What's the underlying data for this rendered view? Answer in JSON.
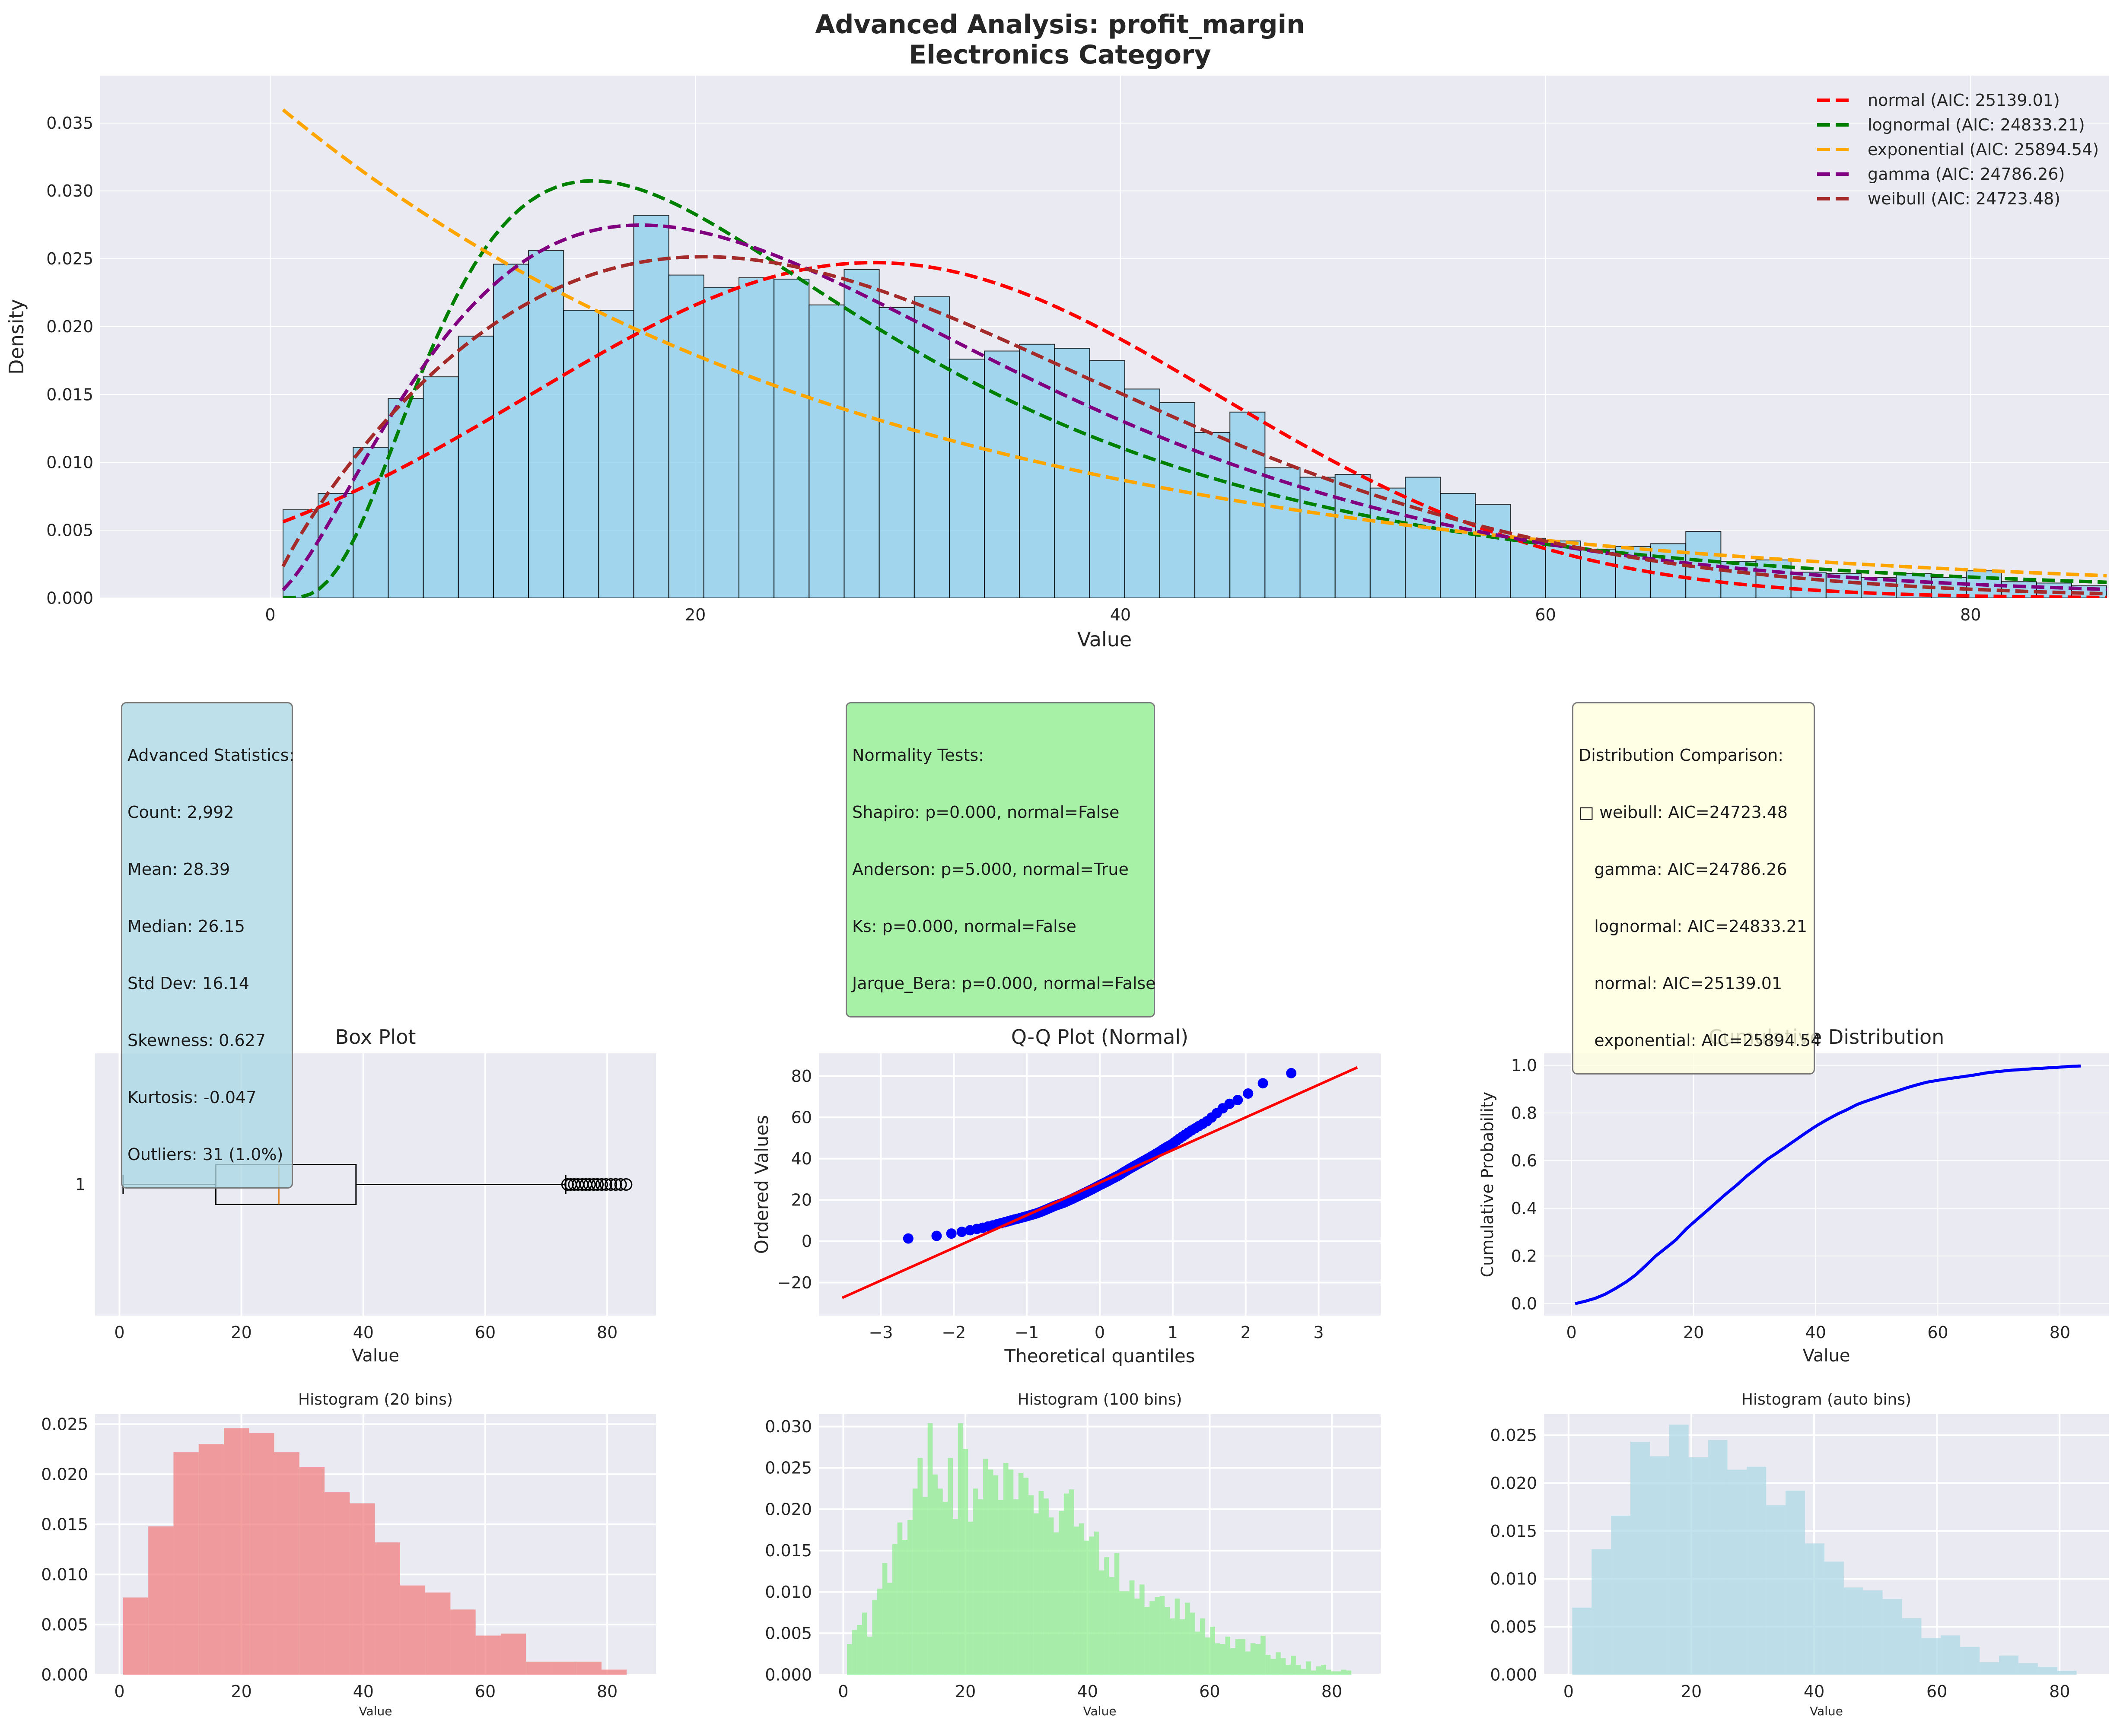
{
  "colors": {
    "axes_bg": "#eaeaf2",
    "hist_main": "#87ceeb",
    "normal": "#ff0000",
    "lognormal": "#008000",
    "exponential": "#ffa500",
    "gamma": "#800080",
    "weibull": "#a52a2a",
    "box_median": "#e08a2b",
    "qq_points": "#0000ff",
    "qq_line": "#ff0000",
    "cdf_line": "#0000ff",
    "hist20": "#f08080",
    "hist100": "#90ee90",
    "histauto": "#add8e6",
    "stats_box": "#add8e6",
    "tests_box": "#90ee90",
    "comparison_box": "#ffffe0"
  },
  "title": {
    "line1": "Advanced Analysis: profit_margin",
    "line2": "Electronics Category"
  },
  "chart_data": [
    {
      "id": "main",
      "type": "bar",
      "xlabel": "Value",
      "ylabel": "Density",
      "xlim": [
        -8,
        86.5
      ],
      "ylim": [
        0,
        0.0385
      ],
      "xticks": [
        0,
        20,
        40,
        60,
        80
      ],
      "yticks": [
        0,
        0.005,
        0.01,
        0.015,
        0.02,
        0.025,
        0.03,
        0.035
      ],
      "bin_start": 0.6,
      "bin_width": 1.65,
      "densities": [
        0.0065,
        0.0077,
        0.0111,
        0.0147,
        0.0163,
        0.0193,
        0.0246,
        0.0256,
        0.0212,
        0.0212,
        0.0282,
        0.0238,
        0.0229,
        0.0236,
        0.0235,
        0.0216,
        0.0242,
        0.0214,
        0.0222,
        0.0176,
        0.0182,
        0.0187,
        0.0184,
        0.0175,
        0.0154,
        0.0144,
        0.0122,
        0.0137,
        0.0096,
        0.0089,
        0.0091,
        0.0081,
        0.0089,
        0.0077,
        0.0069,
        0.0044,
        0.0042,
        0.0036,
        0.0038,
        0.004,
        0.0049,
        0.0027,
        0.0028,
        0.0019,
        0.0018,
        0.0015,
        0.0018,
        0.0015,
        0.002,
        0.0012,
        0.0011,
        0.0009
      ],
      "legend": {
        "position": "upper right",
        "entries": [
          {
            "label": "normal (AIC: 25139.01)",
            "key": "normal"
          },
          {
            "label": "lognormal (AIC: 24833.21)",
            "key": "lognormal"
          },
          {
            "label": "exponential (AIC: 25894.54)",
            "key": "exponential"
          },
          {
            "label": "gamma (AIC: 24786.26)",
            "key": "gamma"
          },
          {
            "label": "weibull (AIC: 24723.48)",
            "key": "weibull"
          }
        ]
      },
      "fits": {
        "normal": {
          "mean": 28.39,
          "sd": 16.14
        },
        "lognormal": {
          "mu": 3.18,
          "sigma": 0.68
        },
        "exponential": {
          "loc": 0.6,
          "scale": 27.79
        },
        "gamma": {
          "shape": 2.6,
          "scale": 10.9
        },
        "weibull": {
          "shape": 1.8,
          "scale": 32.0
        }
      }
    },
    {
      "id": "box",
      "type": "box",
      "title": "Box Plot",
      "xlabel": "Value",
      "ytick_label": "1",
      "xlim": [
        -4,
        88
      ],
      "xticks": [
        0,
        20,
        40,
        60,
        80
      ],
      "whisker_low": 0.6,
      "q1": 15.8,
      "median": 26.15,
      "q3": 38.8,
      "whisker_high": 73.2,
      "outliers": [
        73.5,
        74.0,
        74.6,
        75.2,
        75.9,
        76.5,
        77.1,
        77.8,
        78.4,
        79.1,
        79.8,
        80.6,
        81.4,
        82.2,
        83.1
      ]
    },
    {
      "id": "qq",
      "type": "scatter",
      "title": "Q-Q Plot (Normal)",
      "xlabel": "Theoretical quantiles",
      "ylabel": "Ordered Values",
      "xlim": [
        -3.85,
        3.85
      ],
      "ylim": [
        -36,
        91
      ],
      "xticks": [
        -3,
        -2,
        -1,
        0,
        1,
        2,
        3
      ],
      "yticks": [
        -20,
        0,
        20,
        40,
        60,
        80
      ],
      "fit_line": {
        "slope": 15.8,
        "intercept": 28.39,
        "x_from": -3.53,
        "x_to": 3.53
      }
    },
    {
      "id": "cdf",
      "type": "line",
      "title": "Cumulative Distribution",
      "xlabel": "Value",
      "ylabel": "Cumulative Probability",
      "xlim": [
        -4.5,
        88
      ],
      "ylim": [
        -0.05,
        1.05
      ],
      "xticks": [
        0,
        20,
        40,
        60,
        80
      ],
      "yticks": [
        0,
        0.2,
        0.4,
        0.6,
        0.8,
        1.0
      ]
    },
    {
      "id": "h20",
      "type": "bar",
      "title": "Histogram (20 bins)",
      "xlabel": "Value",
      "xlim": [
        -4,
        88
      ],
      "ylim": [
        0,
        0.026
      ],
      "xticks": [
        0,
        20,
        40,
        60,
        80
      ],
      "yticks": [
        0,
        0.005,
        0.01,
        0.015,
        0.02,
        0.025
      ],
      "bin_start": 0.6,
      "bin_width": 4.13,
      "densities": [
        0.0077,
        0.0148,
        0.0222,
        0.023,
        0.0246,
        0.0241,
        0.0222,
        0.0207,
        0.0182,
        0.0171,
        0.0132,
        0.0089,
        0.0082,
        0.0065,
        0.0039,
        0.0041,
        0.0013,
        0.0013,
        0.0013,
        0.0005
      ]
    },
    {
      "id": "h100",
      "type": "bar",
      "title": "Histogram (100 bins)",
      "xlabel": "Value",
      "xlim": [
        -4,
        88
      ],
      "ylim": [
        0,
        0.0315
      ],
      "xticks": [
        0,
        20,
        40,
        60,
        80
      ],
      "yticks": [
        0,
        0.005,
        0.01,
        0.015,
        0.02,
        0.025,
        0.03
      ],
      "bin_start": 0.6,
      "bin_width": 0.826,
      "densities": [
        0.0037,
        0.0054,
        0.006,
        0.0075,
        0.0046,
        0.009,
        0.0104,
        0.0135,
        0.0111,
        0.0158,
        0.0184,
        0.0163,
        0.0187,
        0.0225,
        0.0262,
        0.0215,
        0.0304,
        0.0242,
        0.0225,
        0.0209,
        0.0262,
        0.0188,
        0.0304,
        0.0273,
        0.0185,
        0.0225,
        0.0212,
        0.0261,
        0.0248,
        0.0241,
        0.0211,
        0.0256,
        0.0248,
        0.0212,
        0.0244,
        0.0238,
        0.0217,
        0.0195,
        0.0222,
        0.0213,
        0.019,
        0.0172,
        0.0198,
        0.0219,
        0.0224,
        0.0179,
        0.0183,
        0.0162,
        0.0167,
        0.0173,
        0.0126,
        0.0142,
        0.0118,
        0.0147,
        0.0101,
        0.0101,
        0.0114,
        0.0092,
        0.0109,
        0.0082,
        0.0089,
        0.0094,
        0.0095,
        0.0082,
        0.0068,
        0.0092,
        0.0067,
        0.0087,
        0.0075,
        0.0052,
        0.0068,
        0.0045,
        0.0058,
        0.0038,
        0.0037,
        0.0046,
        0.0032,
        0.0043,
        0.0043,
        0.0028,
        0.0038,
        0.0037,
        0.0047,
        0.0024,
        0.0019,
        0.0027,
        0.002,
        0.0012,
        0.0023,
        0.0012,
        0.0007,
        0.0016,
        0.0005,
        0.001,
        0.0012,
        0.0006,
        0.0004,
        0.0004,
        0.0006,
        0.0005
      ]
    },
    {
      "id": "hauto",
      "type": "bar",
      "title": "Histogram (auto bins)",
      "xlabel": "Value",
      "xlim": [
        -4,
        88
      ],
      "ylim": [
        0,
        0.0272
      ],
      "xticks": [
        0,
        20,
        40,
        60,
        80
      ],
      "yticks": [
        0,
        0.005,
        0.01,
        0.015,
        0.02,
        0.025
      ],
      "bin_start": 0.6,
      "bin_width": 3.16,
      "densities": [
        0.007,
        0.0131,
        0.0166,
        0.0243,
        0.0228,
        0.0261,
        0.0227,
        0.0245,
        0.0214,
        0.0217,
        0.0177,
        0.0192,
        0.0137,
        0.0118,
        0.0091,
        0.0088,
        0.0079,
        0.0059,
        0.0038,
        0.0041,
        0.0029,
        0.0013,
        0.002,
        0.0012,
        0.0008,
        0.0004
      ]
    }
  ],
  "stats_box": {
    "lines": [
      "Advanced Statistics:",
      "Count: 2,992",
      "Mean: 28.39",
      "Median: 26.15",
      "Std Dev: 16.14",
      "Skewness: 0.627",
      "Kurtosis: -0.047",
      "Outliers: 31 (1.0%)"
    ]
  },
  "tests_box": {
    "lines": [
      "Normality Tests:",
      "Shapiro: p=0.000, normal=False",
      "Anderson: p=5.000, normal=True",
      "Ks: p=0.000, normal=False",
      "Jarque_Bera: p=0.000, normal=False"
    ]
  },
  "comparison_box": {
    "lines": [
      "Distribution Comparison:",
      "□ weibull: AIC=24723.48",
      "   gamma: AIC=24786.26",
      "   lognormal: AIC=24833.21",
      "   normal: AIC=25139.01",
      "   exponential: AIC=25894.54"
    ]
  }
}
